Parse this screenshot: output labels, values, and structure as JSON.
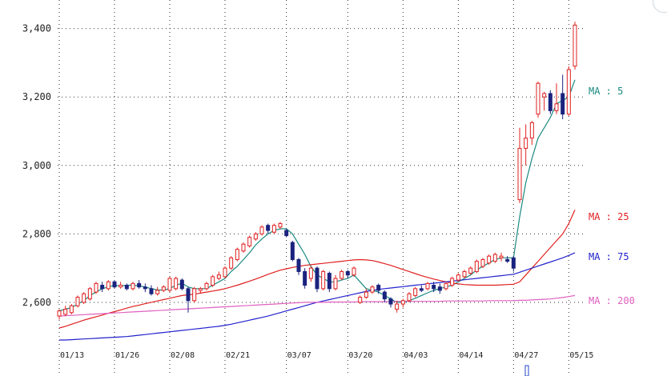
{
  "chart_data": {
    "type": "candlestick",
    "yticks": [
      2600,
      2800,
      3000,
      3200,
      3400
    ],
    "ytick_labels": [
      "2,600",
      "2,800",
      "3,000",
      "3,200",
      "3,400"
    ],
    "xtick_labels": [
      "01/13",
      "01/26",
      "02/08",
      "02/21",
      "03/07",
      "03/20",
      "04/03",
      "04/14",
      "04/27",
      "05/15"
    ],
    "ylim": [
      2490,
      3460
    ],
    "grid": true,
    "colors": {
      "up": "#e02020",
      "down": "#1a237e",
      "ma5": "#1a8a80",
      "ma25": "#e02020",
      "ma75": "#2222cc",
      "ma200": "#e060c0"
    },
    "candles": [
      [
        2560,
        2575,
        2550,
        2580
      ],
      [
        2565,
        2580,
        2560,
        2590
      ],
      [
        2570,
        2590,
        2565,
        2595
      ],
      [
        2590,
        2615,
        2585,
        2620
      ],
      [
        2600,
        2625,
        2595,
        2630
      ],
      [
        2610,
        2640,
        2605,
        2645
      ],
      [
        2630,
        2655,
        2625,
        2660
      ],
      [
        2650,
        2640,
        2630,
        2660
      ],
      [
        2640,
        2660,
        2635,
        2665
      ],
      [
        2660,
        2645,
        2640,
        2665
      ],
      [
        2645,
        2650,
        2640,
        2660
      ],
      [
        2650,
        2640,
        2635,
        2655
      ],
      [
        2640,
        2655,
        2635,
        2660
      ],
      [
        2655,
        2645,
        2640,
        2665
      ],
      [
        2645,
        2640,
        2630,
        2655
      ],
      [
        2640,
        2625,
        2620,
        2650
      ],
      [
        2625,
        2635,
        2620,
        2645
      ],
      [
        2635,
        2645,
        2630,
        2650
      ],
      [
        2635,
        2670,
        2630,
        2675
      ],
      [
        2640,
        2670,
        2635,
        2675
      ],
      [
        2665,
        2640,
        2635,
        2670
      ],
      [
        2640,
        2605,
        2570,
        2645
      ],
      [
        2605,
        2640,
        2600,
        2645
      ],
      [
        2635,
        2640,
        2625,
        2645
      ],
      [
        2640,
        2655,
        2635,
        2660
      ],
      [
        2650,
        2675,
        2645,
        2680
      ],
      [
        2670,
        2680,
        2665,
        2690
      ],
      [
        2675,
        2700,
        2670,
        2705
      ],
      [
        2700,
        2730,
        2695,
        2735
      ],
      [
        2725,
        2755,
        2720,
        2760
      ],
      [
        2750,
        2770,
        2745,
        2775
      ],
      [
        2765,
        2790,
        2760,
        2795
      ],
      [
        2785,
        2800,
        2780,
        2805
      ],
      [
        2800,
        2820,
        2795,
        2825
      ],
      [
        2825,
        2810,
        2800,
        2830
      ],
      [
        2805,
        2825,
        2800,
        2830
      ],
      [
        2820,
        2830,
        2815,
        2835
      ],
      [
        2810,
        2795,
        2790,
        2815
      ],
      [
        2775,
        2725,
        2720,
        2780
      ],
      [
        2725,
        2690,
        2680,
        2730
      ],
      [
        2690,
        2650,
        2640,
        2700
      ],
      [
        2670,
        2700,
        2660,
        2705
      ],
      [
        2700,
        2640,
        2630,
        2705
      ],
      [
        2640,
        2690,
        2635,
        2695
      ],
      [
        2685,
        2640,
        2630,
        2690
      ],
      [
        2640,
        2670,
        2635,
        2680
      ],
      [
        2670,
        2690,
        2665,
        2695
      ],
      [
        2690,
        2680,
        2670,
        2695
      ],
      [
        2680,
        2700,
        2675,
        2705
      ],
      [
        2600,
        2615,
        2595,
        2620
      ],
      [
        2615,
        2630,
        2610,
        2640
      ],
      [
        2630,
        2645,
        2625,
        2650
      ],
      [
        2650,
        2635,
        2625,
        2655
      ],
      [
        2630,
        2610,
        2600,
        2635
      ],
      [
        2610,
        2595,
        2585,
        2615
      ],
      [
        2580,
        2595,
        2570,
        2605
      ],
      [
        2595,
        2605,
        2585,
        2610
      ],
      [
        2605,
        2625,
        2600,
        2630
      ],
      [
        2620,
        2640,
        2615,
        2645
      ],
      [
        2640,
        2635,
        2630,
        2650
      ],
      [
        2640,
        2655,
        2635,
        2660
      ],
      [
        2650,
        2640,
        2630,
        2660
      ],
      [
        2645,
        2635,
        2625,
        2655
      ],
      [
        2640,
        2655,
        2635,
        2660
      ],
      [
        2650,
        2670,
        2645,
        2675
      ],
      [
        2665,
        2680,
        2660,
        2685
      ],
      [
        2675,
        2690,
        2670,
        2695
      ],
      [
        2685,
        2700,
        2680,
        2705
      ],
      [
        2690,
        2720,
        2685,
        2725
      ],
      [
        2705,
        2725,
        2700,
        2730
      ],
      [
        2715,
        2735,
        2710,
        2740
      ],
      [
        2720,
        2740,
        2715,
        2745
      ],
      [
        2730,
        2735,
        2720,
        2745
      ],
      [
        2725,
        2720,
        2715,
        2735
      ],
      [
        2730,
        2700,
        2690,
        2735
      ],
      [
        2900,
        3050,
        2890,
        3110
      ],
      [
        3050,
        3080,
        3000,
        3120
      ],
      [
        3080,
        3125,
        3060,
        3130
      ],
      [
        3150,
        3240,
        3140,
        3245
      ],
      [
        3200,
        3210,
        3160,
        3215
      ],
      [
        3210,
        3160,
        3150,
        3220
      ],
      [
        3160,
        3180,
        3150,
        3240
      ],
      [
        3210,
        3150,
        3135,
        3265
      ],
      [
        3150,
        3280,
        3145,
        3290
      ],
      [
        3290,
        3410,
        3280,
        3420
      ]
    ],
    "series": [
      {
        "name": "MA : 5",
        "values": [
          2575,
          2580,
          2585,
          2595,
          2605,
          2620,
          2630,
          2640,
          2645,
          2650,
          2648,
          2650,
          2650,
          2648,
          2645,
          2640,
          2636,
          2636,
          2640,
          2650,
          2656,
          2645,
          2640,
          2640,
          2640,
          2650,
          2660,
          2670,
          2690,
          2705,
          2725,
          2745,
          2768,
          2785,
          2800,
          2810,
          2815,
          2815,
          2800,
          2770,
          2740,
          2705,
          2680,
          2670,
          2660,
          2660,
          2665,
          2670,
          2680,
          2660,
          2640,
          2635,
          2630,
          2620,
          2610,
          2600,
          2600,
          2605,
          2612,
          2620,
          2628,
          2635,
          2640,
          2645,
          2650,
          2660,
          2670,
          2680,
          2695,
          2705,
          2715,
          2725,
          2730,
          2730,
          2730,
          2850,
          2950,
          3020,
          3080,
          3110,
          3140,
          3180,
          3190,
          3200,
          3250
        ]
      },
      {
        "name": "MA : 25",
        "values": [
          2525,
          2530,
          2536,
          2542,
          2548,
          2553,
          2558,
          2563,
          2568,
          2573,
          2578,
          2583,
          2588,
          2592,
          2596,
          2600,
          2604,
          2608,
          2612,
          2616,
          2620,
          2622,
          2624,
          2627,
          2630,
          2633,
          2636,
          2640,
          2645,
          2650,
          2656,
          2662,
          2668,
          2675,
          2682,
          2688,
          2694,
          2698,
          2702,
          2705,
          2708,
          2710,
          2712,
          2714,
          2716,
          2718,
          2720,
          2722,
          2724,
          2725,
          2724,
          2722,
          2718,
          2713,
          2708,
          2702,
          2696,
          2690,
          2684,
          2678,
          2673,
          2668,
          2664,
          2660,
          2656,
          2654,
          2652,
          2651,
          2650,
          2650,
          2650,
          2650,
          2651,
          2652,
          2653,
          2660,
          2680,
          2700,
          2720,
          2740,
          2760,
          2780,
          2800,
          2830,
          2870
        ]
      },
      {
        "name": "MA : 75",
        "values": [
          2490,
          2490,
          2491,
          2492,
          2493,
          2494,
          2495,
          2496,
          2497,
          2498,
          2499,
          2500,
          2502,
          2504,
          2506,
          2508,
          2510,
          2512,
          2514,
          2516,
          2518,
          2520,
          2522,
          2524,
          2526,
          2528,
          2530,
          2533,
          2536,
          2540,
          2544,
          2548,
          2552,
          2556,
          2560,
          2565,
          2570,
          2575,
          2580,
          2585,
          2590,
          2595,
          2600,
          2604,
          2608,
          2612,
          2616,
          2620,
          2624,
          2628,
          2632,
          2635,
          2638,
          2640,
          2642,
          2644,
          2646,
          2648,
          2650,
          2652,
          2654,
          2656,
          2658,
          2660,
          2662,
          2664,
          2666,
          2668,
          2670,
          2672,
          2674,
          2676,
          2678,
          2680,
          2682,
          2688,
          2694,
          2700,
          2706,
          2712,
          2718,
          2724,
          2730,
          2737,
          2745
        ]
      },
      {
        "name": "MA : 200",
        "values": [
          2560,
          2561,
          2562,
          2563,
          2564,
          2565,
          2566,
          2567,
          2568,
          2569,
          2570,
          2571,
          2572,
          2573,
          2574,
          2575,
          2576,
          2577,
          2578,
          2579,
          2580,
          2581,
          2582,
          2583,
          2584,
          2585,
          2586,
          2587,
          2588,
          2589,
          2590,
          2591,
          2592,
          2593,
          2594,
          2595,
          2596,
          2597,
          2598,
          2599,
          2600,
          2600,
          2600,
          2600,
          2601,
          2601,
          2601,
          2601,
          2601,
          2602,
          2602,
          2602,
          2602,
          2602,
          2602,
          2603,
          2603,
          2603,
          2603,
          2603,
          2603,
          2603,
          2603,
          2604,
          2604,
          2604,
          2604,
          2604,
          2604,
          2604,
          2605,
          2605,
          2605,
          2605,
          2605,
          2606,
          2606,
          2607,
          2608,
          2609,
          2610,
          2612,
          2614,
          2617,
          2620
        ]
      }
    ]
  }
}
